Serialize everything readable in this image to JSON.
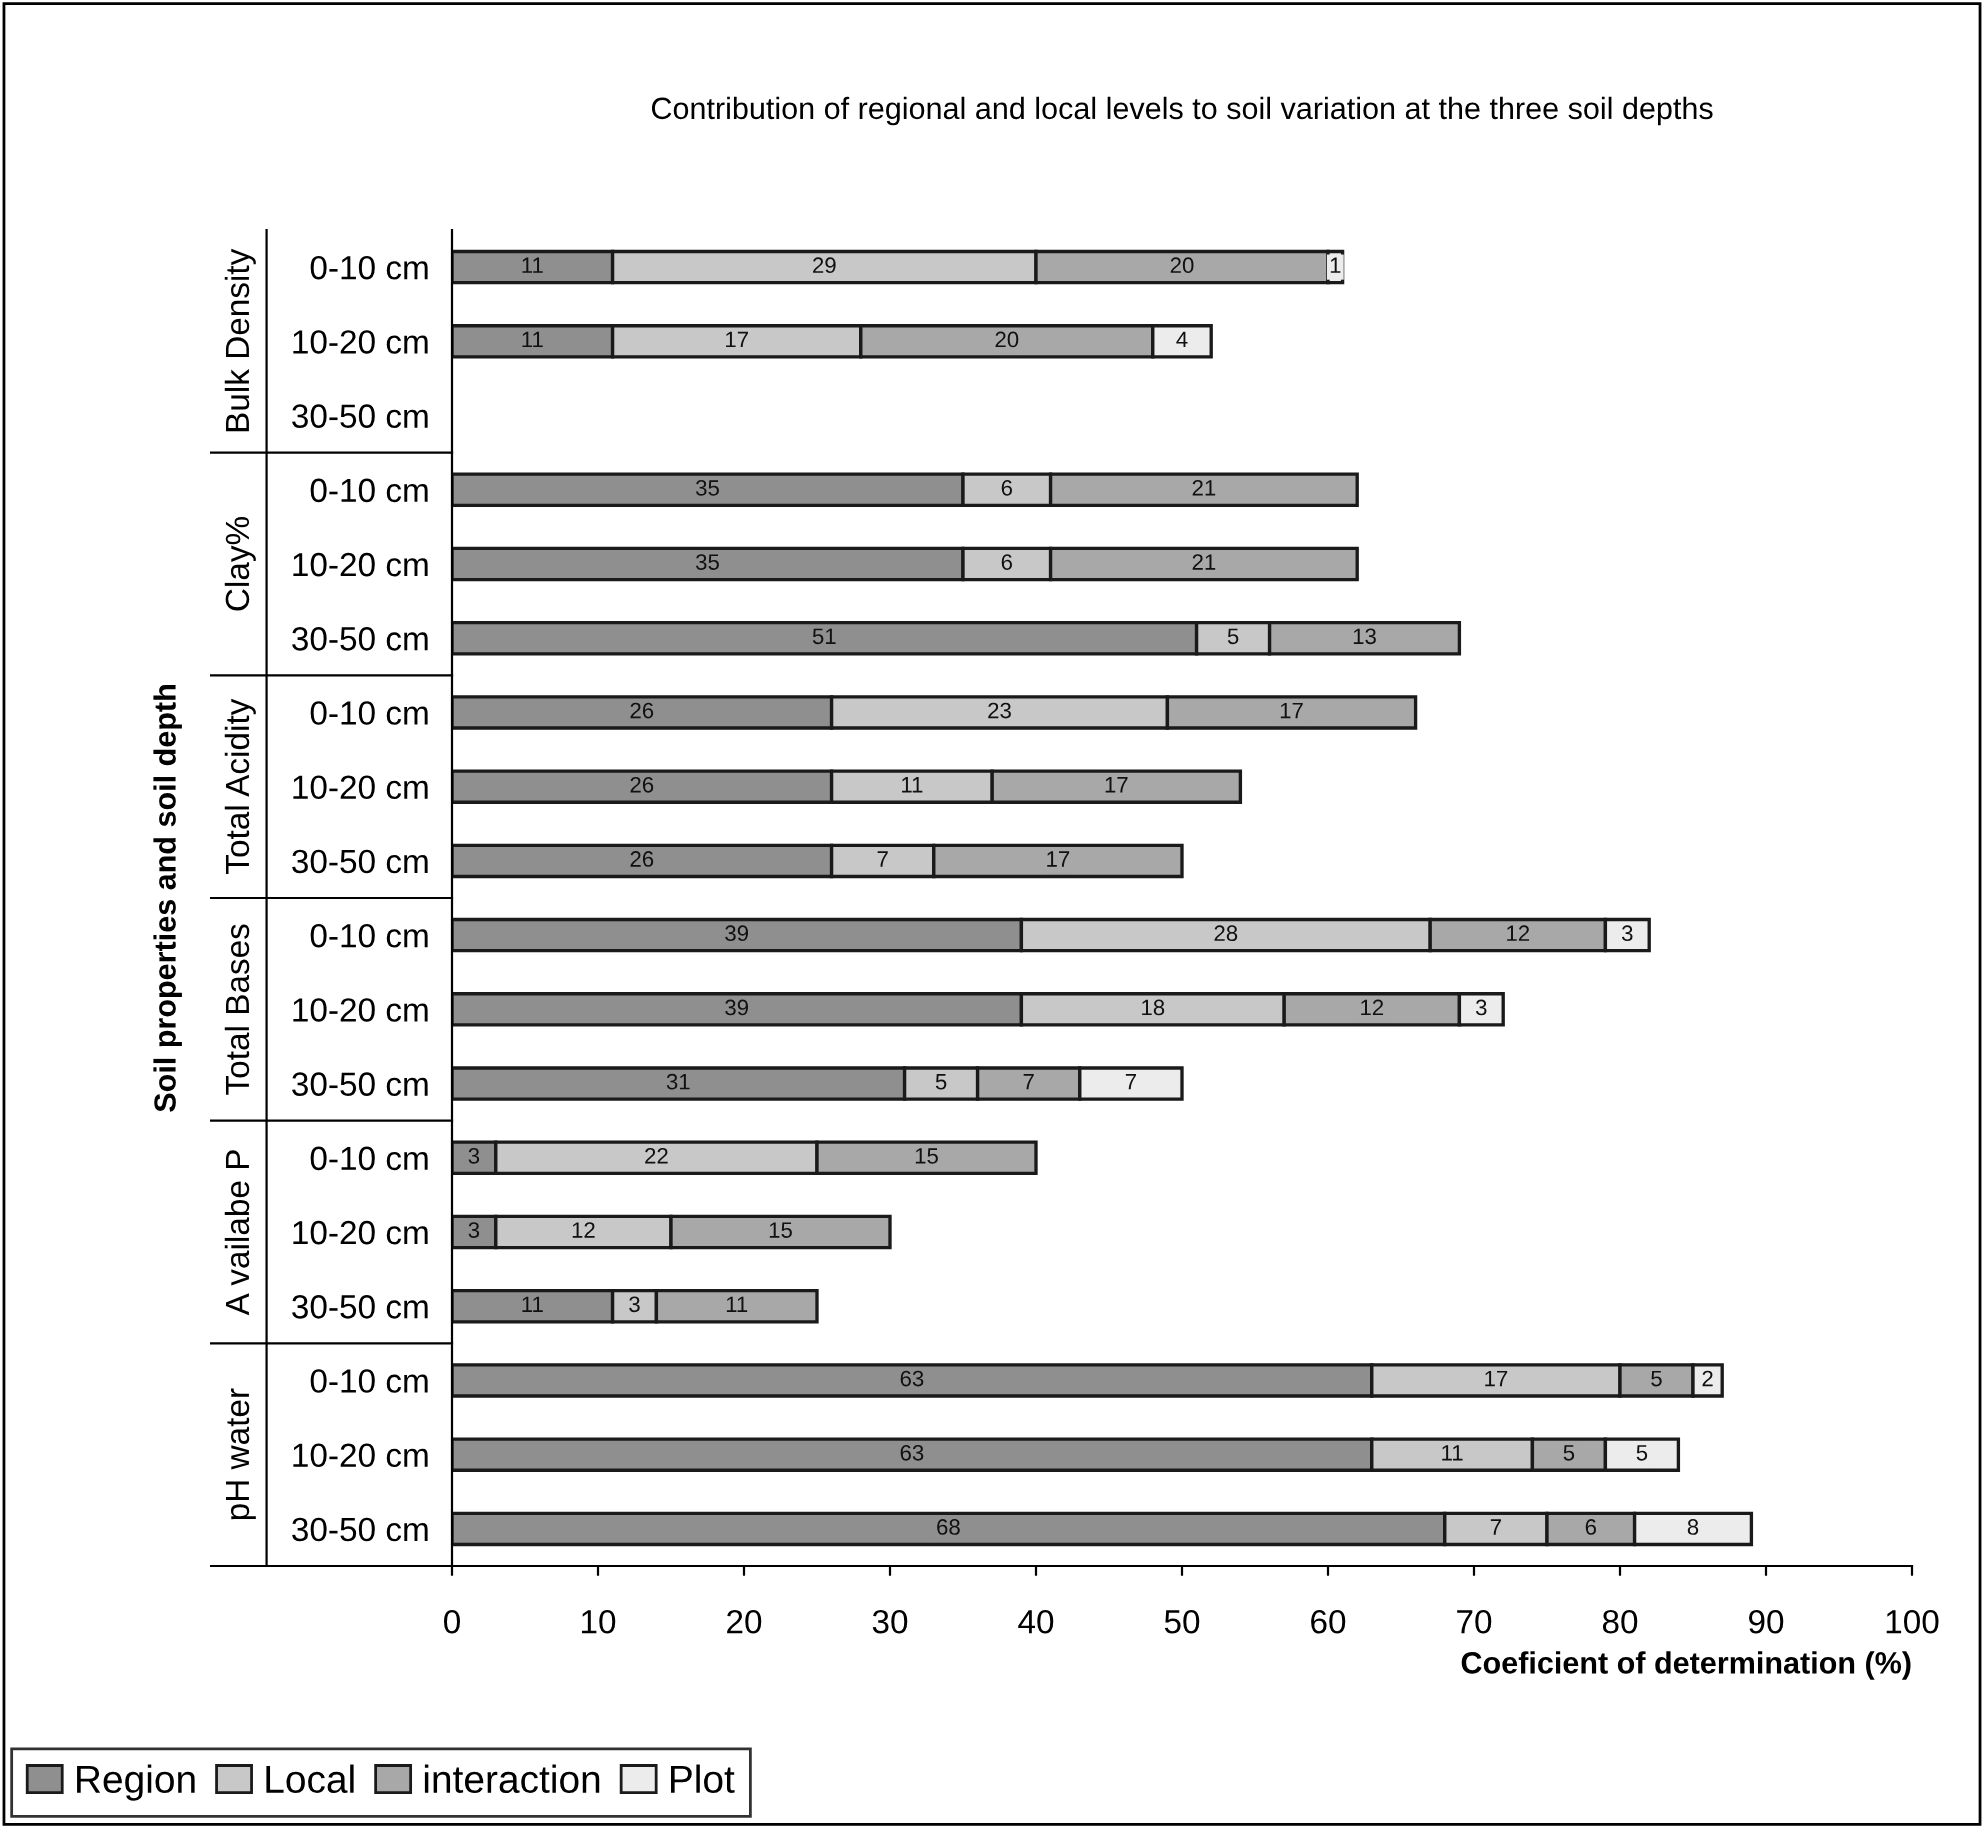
{
  "chart_data": {
    "type": "bar",
    "orientation": "horizontal",
    "stacked": true,
    "title": "Contribution of regional and local levels to soil variation at the three soil depths",
    "xlabel": "Coeficient of determination (%)",
    "ylabel": "Soil properties and soil depth",
    "categories": [
      "0-10 cm",
      "10-20 cm",
      "30-50 cm",
      "0-10 cm",
      "10-20 cm",
      "30-50 cm",
      "0-10 cm",
      "10-20 cm",
      "30-50 cm",
      "0-10 cm",
      "10-20 cm",
      "30-50 cm",
      "0-10 cm",
      "10-20 cm",
      "30-50 cm",
      "0-10 cm",
      "10-20 cm",
      "30-50 cm"
    ],
    "series": [
      {
        "name": "Region",
        "color": "#8f8f8f",
        "values": [
          11,
          11,
          null,
          35,
          35,
          51,
          26,
          26,
          26,
          39,
          39,
          31,
          3,
          3,
          11,
          63,
          63,
          68
        ]
      },
      {
        "name": "Local",
        "color": "#c8c8c8",
        "values": [
          29,
          17,
          null,
          6,
          6,
          5,
          23,
          11,
          7,
          28,
          18,
          5,
          22,
          12,
          3,
          17,
          11,
          7
        ]
      },
      {
        "name": "interaction",
        "color": "#a8a8a8",
        "values": [
          20,
          20,
          null,
          21,
          21,
          13,
          17,
          17,
          17,
          12,
          12,
          7,
          15,
          15,
          11,
          5,
          5,
          6
        ]
      },
      {
        "name": "Plot",
        "color": "#ececec",
        "values": [
          1,
          4,
          null,
          null,
          null,
          null,
          null,
          null,
          null,
          3,
          3,
          7,
          null,
          null,
          null,
          2,
          5,
          8
        ]
      }
    ],
    "annotations": [
      "Bulk Density",
      "Clay%",
      "Total Acidity",
      "Total Bases",
      "A vailabe P",
      "pH water"
    ],
    "xlim": [
      0,
      100
    ],
    "xticks": [
      0,
      10,
      20,
      30,
      40,
      50,
      60,
      70,
      80,
      90,
      100
    ],
    "data_labels": true,
    "legend": "bottom left",
    "grid": false
  }
}
